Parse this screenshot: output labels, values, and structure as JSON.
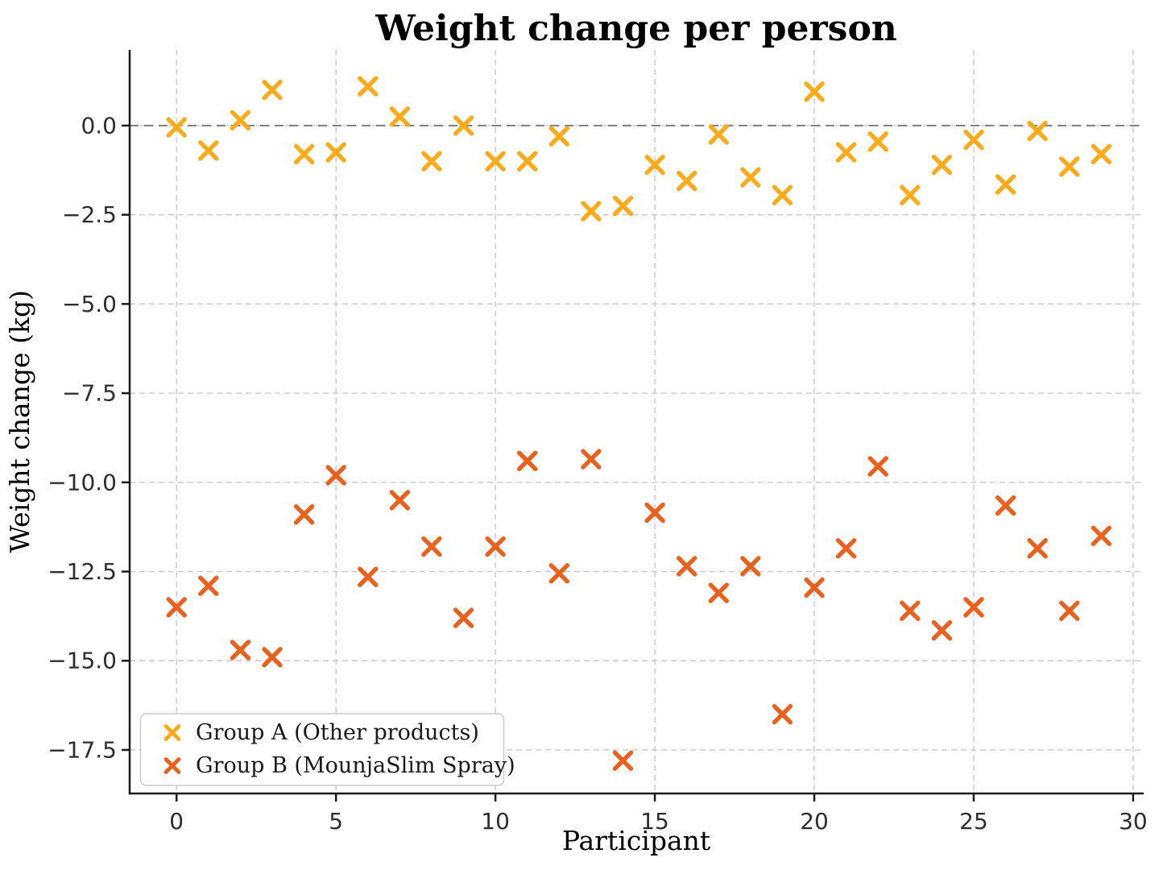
{
  "title": "Weight change per person",
  "axes": {
    "xlabel": "Participant",
    "ylabel": "Weight change (kg)",
    "x_ticks": [
      0,
      5,
      10,
      15,
      20,
      25,
      30
    ],
    "x_tick_labels": [
      "0",
      "5",
      "10",
      "15",
      "20",
      "25",
      "30"
    ],
    "y_ticks": [
      0,
      -2.5,
      -5,
      -7.5,
      -10,
      -12.5,
      -15,
      -17.5
    ],
    "y_tick_labels": [
      "0.0",
      "−2.5",
      "−5.0",
      "−7.5",
      "−10.0",
      "−12.5",
      "−15.0",
      "−17.5"
    ]
  },
  "colors": {
    "grid": "#c9c9c9",
    "zero_line": "#7f7f7f",
    "spine": "#1c1c1c",
    "legend_border": "#cccccc",
    "group_a": "#FBAB1B",
    "group_b": "#E9611E"
  },
  "chart_data": {
    "type": "scatter",
    "title": "Weight change per person",
    "xlabel": "Participant",
    "ylabel": "Weight change (kg)",
    "marker": "x",
    "grid": true,
    "legend_position": "lower-left",
    "zero_line": 0,
    "xlim": [
      -1.47,
      30.33
    ],
    "ylim": [
      -18.72,
      2.12
    ],
    "x": [
      0,
      1,
      2,
      3,
      4,
      5,
      6,
      7,
      8,
      9,
      10,
      11,
      12,
      13,
      14,
      15,
      16,
      17,
      18,
      19,
      20,
      21,
      22,
      23,
      24,
      25,
      26,
      27,
      28,
      29
    ],
    "series": [
      {
        "name": "Group A (Other products)",
        "color": "#FBAB1B",
        "values": [
          -0.05,
          -0.7,
          0.15,
          1.0,
          -0.8,
          -0.75,
          1.1,
          0.25,
          -1.0,
          0.0,
          -1.0,
          -1.0,
          -0.3,
          -2.4,
          -2.25,
          -1.1,
          -1.55,
          -0.25,
          -1.45,
          -1.95,
          0.95,
          -0.75,
          -0.45,
          -1.95,
          -1.1,
          -0.4,
          -1.65,
          -0.15,
          -1.15,
          -0.8
        ]
      },
      {
        "name": "Group B (MounjaSlim Spray)",
        "color": "#E9611E",
        "values": [
          -13.5,
          -12.9,
          -14.7,
          -14.9,
          -10.9,
          -9.8,
          -12.65,
          -10.5,
          -11.8,
          -13.8,
          -11.8,
          -9.4,
          -12.55,
          -9.35,
          -17.8,
          -10.85,
          -12.35,
          -13.1,
          -12.35,
          -16.5,
          -12.95,
          -11.85,
          -9.55,
          -13.6,
          -14.15,
          -13.5,
          -10.65,
          -11.85,
          -13.6,
          -11.5
        ]
      }
    ]
  }
}
